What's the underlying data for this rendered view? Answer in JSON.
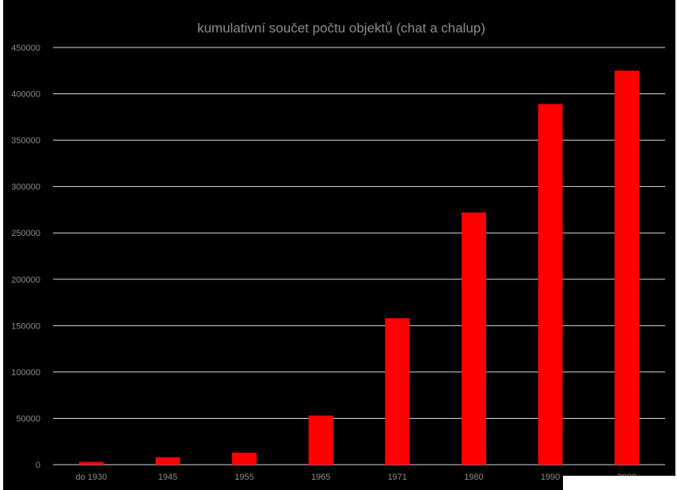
{
  "chart_data": {
    "type": "bar",
    "title": "kumulativní součet počtu objektů (chat a chalup)",
    "xlabel": "",
    "ylabel": "",
    "categories": [
      "do 1930",
      "1945",
      "1955",
      "1965",
      "1971",
      "1980",
      "1990",
      "2000"
    ],
    "values": [
      3000,
      8000,
      13000,
      53000,
      158000,
      272000,
      389000,
      425000
    ],
    "ylim": [
      0,
      450000
    ],
    "yticks": [
      0,
      50000,
      100000,
      150000,
      200000,
      250000,
      300000,
      350000,
      400000,
      450000
    ],
    "ytick_labels": [
      "0",
      "50000",
      "100000",
      "150000",
      "200000",
      "250000",
      "300000",
      "350000",
      "400000",
      "450000"
    ],
    "grid": true,
    "legend": "none",
    "colors": {
      "bar": "#ff0000",
      "background": "#000000",
      "grid": "#d9d9d9",
      "text": "#8c8c8c"
    }
  }
}
